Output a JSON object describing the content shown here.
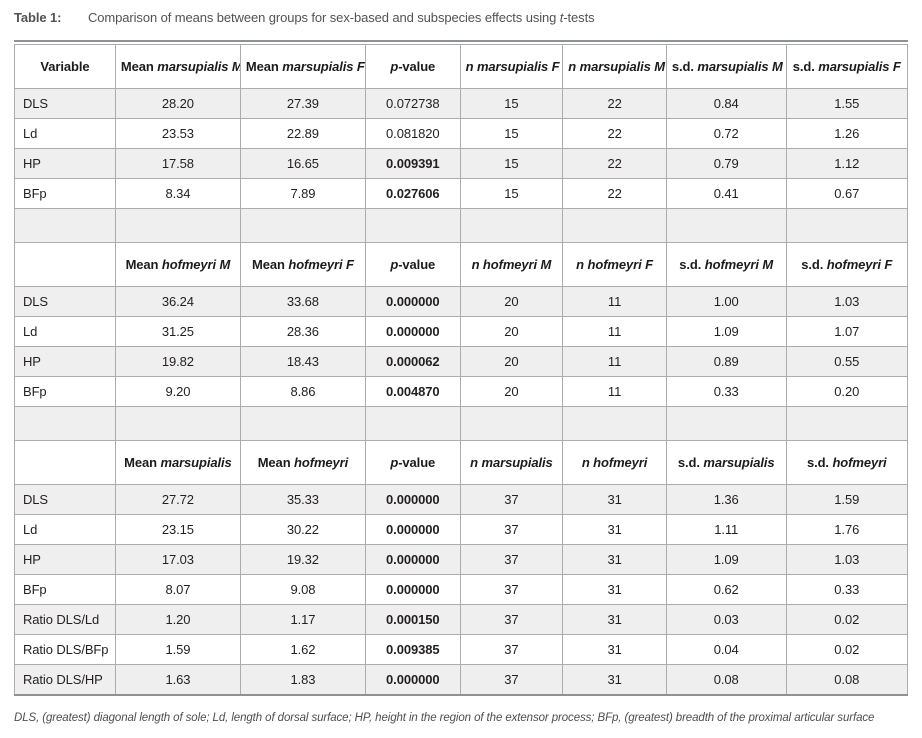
{
  "title": {
    "label": "Table 1:",
    "caption_pre": "Comparison of means between groups for sex-based and subspecies effects using ",
    "caption_it": "t",
    "caption_post": "-tests"
  },
  "colors": {
    "row_shade": "#efefef",
    "rule": "#8f9194",
    "grid": "#aaacae",
    "text": "#231f20"
  },
  "table": {
    "sections": [
      {
        "headers": [
          {
            "pre": "Variable"
          },
          {
            "pre": "Mean ",
            "it": "marsupialis M"
          },
          {
            "pre": "Mean ",
            "it": "marsupialis F"
          },
          {
            "it": "p",
            "post": "-value"
          },
          {
            "it": "n marsupialis F"
          },
          {
            "it": "n marsupialis M"
          },
          {
            "pre": "s.d. ",
            "it": "marsupialis M"
          },
          {
            "pre": "s.d. ",
            "it": "marsupialis F"
          }
        ],
        "rows": [
          {
            "label": "DLS",
            "values": [
              "28.20",
              "27.39",
              "0.072738",
              "15",
              "22",
              "0.84",
              "1.55"
            ],
            "p_bold": false
          },
          {
            "label": "Ld",
            "values": [
              "23.53",
              "22.89",
              "0.081820",
              "15",
              "22",
              "0.72",
              "1.26"
            ],
            "p_bold": false
          },
          {
            "label": "HP",
            "values": [
              "17.58",
              "16.65",
              "0.009391",
              "15",
              "22",
              "0.79",
              "1.12"
            ],
            "p_bold": true
          },
          {
            "label": "BFp",
            "values": [
              "8.34",
              "7.89",
              "0.027606",
              "15",
              "22",
              "0.41",
              "0.67"
            ],
            "p_bold": true
          }
        ]
      },
      {
        "headers": [
          {
            "pre": ""
          },
          {
            "pre": "Mean ",
            "it": "hofmeyri M"
          },
          {
            "pre": "Mean ",
            "it": "hofmeyri F"
          },
          {
            "it": "p",
            "post": "-value"
          },
          {
            "it": "n hofmeyri M"
          },
          {
            "it": "n hofmeyri F"
          },
          {
            "pre": "s.d. ",
            "it": "hofmeyri M"
          },
          {
            "pre": "s.d. ",
            "it": "hofmeyri F"
          }
        ],
        "rows": [
          {
            "label": "DLS",
            "values": [
              "36.24",
              "33.68",
              "0.000000",
              "20",
              "11",
              "1.00",
              "1.03"
            ],
            "p_bold": true
          },
          {
            "label": "Ld",
            "values": [
              "31.25",
              "28.36",
              "0.000000",
              "20",
              "11",
              "1.09",
              "1.07"
            ],
            "p_bold": true
          },
          {
            "label": "HP",
            "values": [
              "19.82",
              "18.43",
              "0.000062",
              "20",
              "11",
              "0.89",
              "0.55"
            ],
            "p_bold": true
          },
          {
            "label": "BFp",
            "values": [
              "9.20",
              "8.86",
              "0.004870",
              "20",
              "11",
              "0.33",
              "0.20"
            ],
            "p_bold": true
          }
        ]
      },
      {
        "headers": [
          {
            "pre": ""
          },
          {
            "pre": "Mean ",
            "it": "marsupialis"
          },
          {
            "pre": "Mean ",
            "it": "hofmeyri"
          },
          {
            "it": "p",
            "post": "-value"
          },
          {
            "it": "n marsupialis"
          },
          {
            "it": "n hofmeyri"
          },
          {
            "pre": "s.d. ",
            "it": "marsupialis"
          },
          {
            "pre": "s.d. ",
            "it": "hofmeyri"
          }
        ],
        "rows": [
          {
            "label": "DLS",
            "values": [
              "27.72",
              "35.33",
              "0.000000",
              "37",
              "31",
              "1.36",
              "1.59"
            ],
            "p_bold": true
          },
          {
            "label": "Ld",
            "values": [
              "23.15",
              "30.22",
              "0.000000",
              "37",
              "31",
              "1.11",
              "1.76"
            ],
            "p_bold": true
          },
          {
            "label": "HP",
            "values": [
              "17.03",
              "19.32",
              "0.000000",
              "37",
              "31",
              "1.09",
              "1.03"
            ],
            "p_bold": true
          },
          {
            "label": "BFp",
            "values": [
              "8.07",
              "9.08",
              "0.000000",
              "37",
              "31",
              "0.62",
              "0.33"
            ],
            "p_bold": true
          },
          {
            "label": "Ratio DLS/Ld",
            "values": [
              "1.20",
              "1.17",
              "0.000150",
              "37",
              "31",
              "0.03",
              "0.02"
            ],
            "p_bold": true
          },
          {
            "label": "Ratio DLS/BFp",
            "values": [
              "1.59",
              "1.62",
              "0.009385",
              "37",
              "31",
              "0.04",
              "0.02"
            ],
            "p_bold": true
          },
          {
            "label": "Ratio DLS/HP",
            "values": [
              "1.63",
              "1.83",
              "0.000000",
              "37",
              "31",
              "0.08",
              "0.08"
            ],
            "p_bold": true
          }
        ]
      }
    ]
  },
  "footnote": "DLS, (greatest) diagonal length of sole; Ld, length of dorsal surface; HP, height in the region of the extensor process; BFp, (greatest) breadth of the proximal articular surface"
}
